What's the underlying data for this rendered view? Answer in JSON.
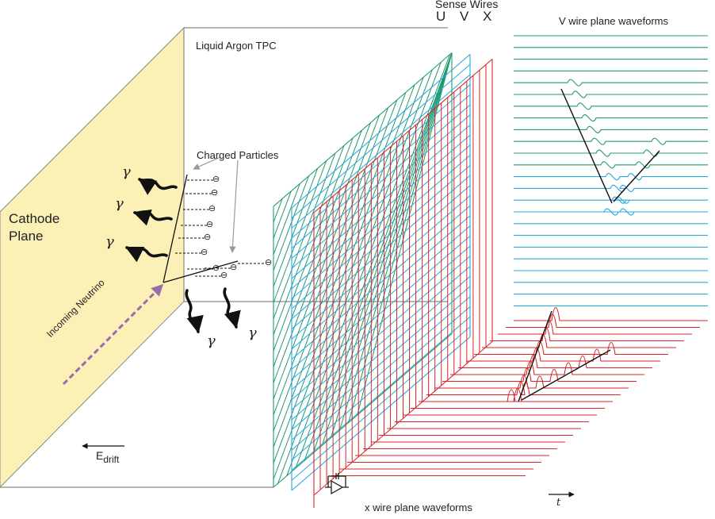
{
  "labels": {
    "sense_wires": "Sense Wires",
    "plane_u": "U",
    "plane_v": "V",
    "plane_x": "X",
    "v_waveforms": "V wire plane waveforms",
    "x_waveforms": "x wire plane waveforms",
    "tpc": "Liquid Argon TPC",
    "charged_particles": "Charged Particles",
    "cathode_line1": "Cathode",
    "cathode_line2": "Plane",
    "incoming_neutrino": "Incoming Neutrino",
    "edrift_main": "E",
    "edrift_sub": "drift",
    "time_axis": "t",
    "gamma": "γ",
    "electron": "⊖"
  },
  "colors": {
    "u_wires": "#1f9a6e",
    "v_wires": "#29a8dc",
    "x_wires": "#d6262a",
    "cathode_fill": "#fbf0b6",
    "neutrino": "#9b6bb0",
    "box_edges": "#8a8a8a"
  }
}
